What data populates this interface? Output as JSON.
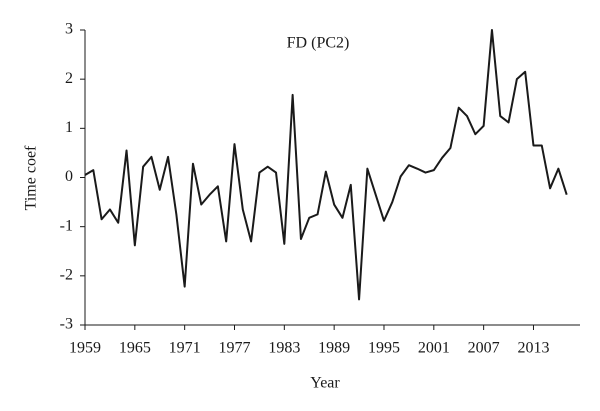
{
  "chart_data": {
    "type": "line",
    "title": "FD (PC2)",
    "x_label": "Year",
    "y_label": "Time coef",
    "x": [
      1959,
      1960,
      1961,
      1962,
      1963,
      1964,
      1965,
      1966,
      1967,
      1968,
      1969,
      1970,
      1971,
      1972,
      1973,
      1974,
      1975,
      1976,
      1977,
      1978,
      1979,
      1980,
      1981,
      1982,
      1983,
      1984,
      1985,
      1986,
      1987,
      1988,
      1989,
      1990,
      1991,
      1992,
      1993,
      1994,
      1995,
      1996,
      1997,
      1998,
      1999,
      2000,
      2001,
      2002,
      2003,
      2004,
      2005,
      2006,
      2007,
      2008,
      2009,
      2010,
      2011,
      2012,
      2013,
      2014,
      2015,
      2016,
      2017
    ],
    "values": [
      0.05,
      0.15,
      -0.85,
      -0.65,
      -0.92,
      0.55,
      -1.38,
      0.22,
      0.42,
      -0.25,
      0.42,
      -0.75,
      -2.22,
      0.28,
      -0.55,
      -0.35,
      -0.18,
      -1.3,
      0.68,
      -0.65,
      -1.3,
      0.1,
      0.22,
      0.1,
      -1.35,
      1.68,
      -1.25,
      -0.82,
      -0.75,
      0.12,
      -0.55,
      -0.82,
      -0.15,
      -2.48,
      0.18,
      -0.35,
      -0.88,
      -0.5,
      0.02,
      0.25,
      0.18,
      0.1,
      0.15,
      0.4,
      0.6,
      1.42,
      1.25,
      0.88,
      1.05,
      3.0,
      1.25,
      1.12,
      2.0,
      2.15,
      0.65,
      0.65,
      -0.22,
      0.18,
      -0.35
    ],
    "color": "#1a1a1a",
    "xlim": [
      1959,
      2018
    ],
    "xticks": [
      1959,
      1965,
      1971,
      1977,
      1983,
      1989,
      1995,
      2001,
      2007,
      2013
    ],
    "ylim": [
      -3,
      3
    ],
    "yticks": [
      -3,
      -2,
      -1,
      0,
      1,
      2,
      3
    ]
  }
}
